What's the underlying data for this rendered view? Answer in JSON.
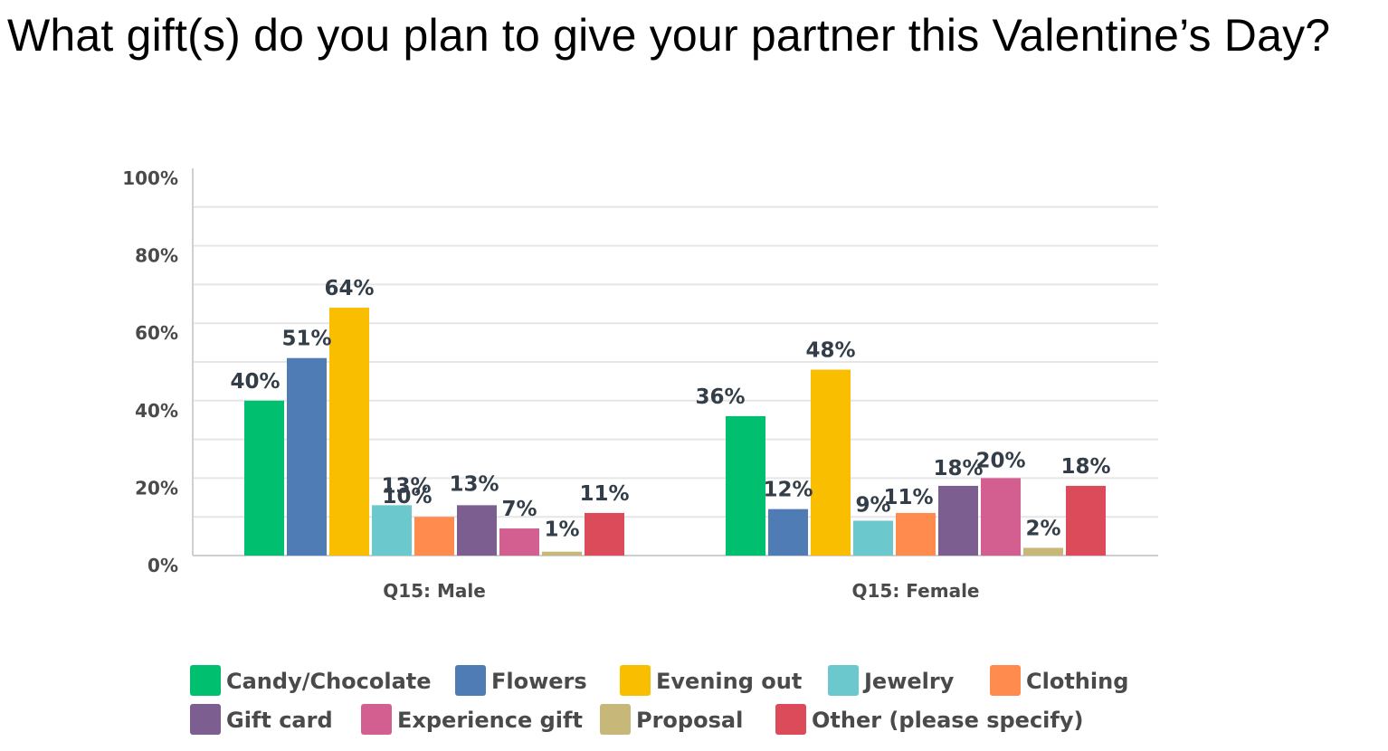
{
  "title": "What gift(s) do you plan to give your partner this Valentine’s Day?",
  "chart_data": {
    "type": "bar",
    "categories": [
      "Q15: Male",
      "Q15: Female"
    ],
    "yticks": [
      "0%",
      "20%",
      "40%",
      "60%",
      "80%",
      "100%"
    ],
    "ylim": [
      0,
      100
    ],
    "grid": true,
    "legend_position": "bottom",
    "series": [
      {
        "name": "Candy/Chocolate",
        "color": "#00bf6f",
        "values": [
          40,
          36
        ],
        "labels": [
          "40%",
          "36%"
        ]
      },
      {
        "name": "Flowers",
        "color": "#507cb6",
        "values": [
          51,
          12
        ],
        "labels": [
          "51%",
          "12%"
        ]
      },
      {
        "name": "Evening out",
        "color": "#f9be00",
        "values": [
          64,
          48
        ],
        "labels": [
          "64%",
          "48%"
        ]
      },
      {
        "name": "Jewelry",
        "color": "#6bc8cd",
        "values": [
          13,
          9
        ],
        "labels": [
          "13%",
          "9%"
        ]
      },
      {
        "name": "Clothing",
        "color": "#ff8b4f",
        "values": [
          10,
          11
        ],
        "labels": [
          "10%",
          "11%"
        ]
      },
      {
        "name": "Gift card",
        "color": "#7d5e90",
        "values": [
          13,
          18
        ],
        "labels": [
          "13%",
          "18%"
        ]
      },
      {
        "name": "Experience gift",
        "color": "#d25f90",
        "values": [
          7,
          20
        ],
        "labels": [
          "7%",
          "20%"
        ]
      },
      {
        "name": "Proposal",
        "color": "#c7b879",
        "values": [
          1,
          2
        ],
        "labels": [
          "1%",
          "2%"
        ]
      },
      {
        "name": "Other (please specify)",
        "color": "#dc4b5a",
        "values": [
          11,
          18
        ],
        "labels": [
          "11%",
          "18%"
        ]
      }
    ]
  }
}
